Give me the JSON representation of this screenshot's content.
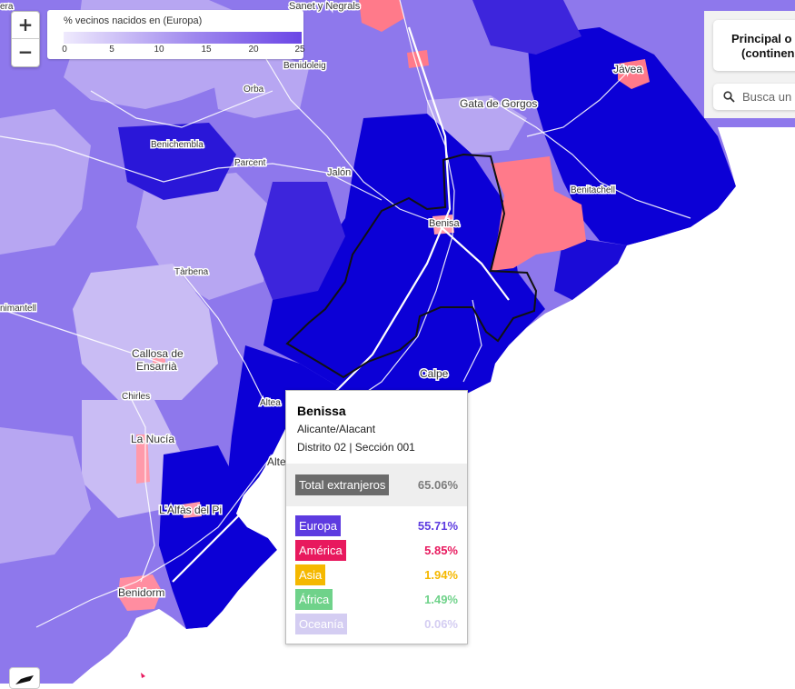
{
  "legend": {
    "title": "% vecinos nacidos en (Europa)",
    "ticks": [
      "0",
      "5",
      "10",
      "15",
      "20",
      "25"
    ],
    "color_low": "#efeafd",
    "color_high": "#6b46e6"
  },
  "zoom": {
    "in_label": "+",
    "out_label": "−"
  },
  "panel": {
    "title_line1": "Principal o",
    "title_line2": "(continen",
    "search_placeholder": "Busca un"
  },
  "places": {
    "sanet": "Sanet y Negrals",
    "benidoleig": "Benidoleig",
    "orba": "Orba",
    "gata": "Gata de Gorgos",
    "javea": "Jávea",
    "beniche": "Benichembla",
    "parcent": "Parcent",
    "jalon": "Jalón",
    "benitachell": "Benitachell",
    "benisa": "Benisa",
    "tarbena": "Tàrbena",
    "animantell": "nimantell",
    "callosa1": "Callosa de",
    "callosa2": "Ensarrià",
    "chirles": "Chirles",
    "calpe": "Calpe",
    "altea1": "Altea",
    "altea2": "Alte",
    "lanucia": "La Nucía",
    "alfas": "L'Alfàs del Pi",
    "benidorm": "Benidorm",
    "era": "era"
  },
  "tooltip": {
    "name": "Benissa",
    "province": "Alicante/Alacant",
    "district": "Distrito 02 | Sección 001",
    "total_label": "Total extranjeros",
    "total_value": "65.06%",
    "rows": [
      {
        "label": "Europa",
        "value": "55.71%",
        "color": "#5d3be0"
      },
      {
        "label": "América",
        "value": "5.85%",
        "color": "#e8195e"
      },
      {
        "label": "Asia",
        "value": "1.94%",
        "color": "#f5b800"
      },
      {
        "label": "África",
        "value": "1.49%",
        "color": "#6fd28a"
      },
      {
        "label": "Oceanía",
        "value": "0.06%",
        "color": "#d4cdf2"
      }
    ]
  },
  "colors": {
    "sea": "#ffffff",
    "high": "#0c00d6",
    "mid": "#5b3ee8",
    "low": "#b7a6f2",
    "pink": "#ff7a8a",
    "outline": "#111111"
  }
}
